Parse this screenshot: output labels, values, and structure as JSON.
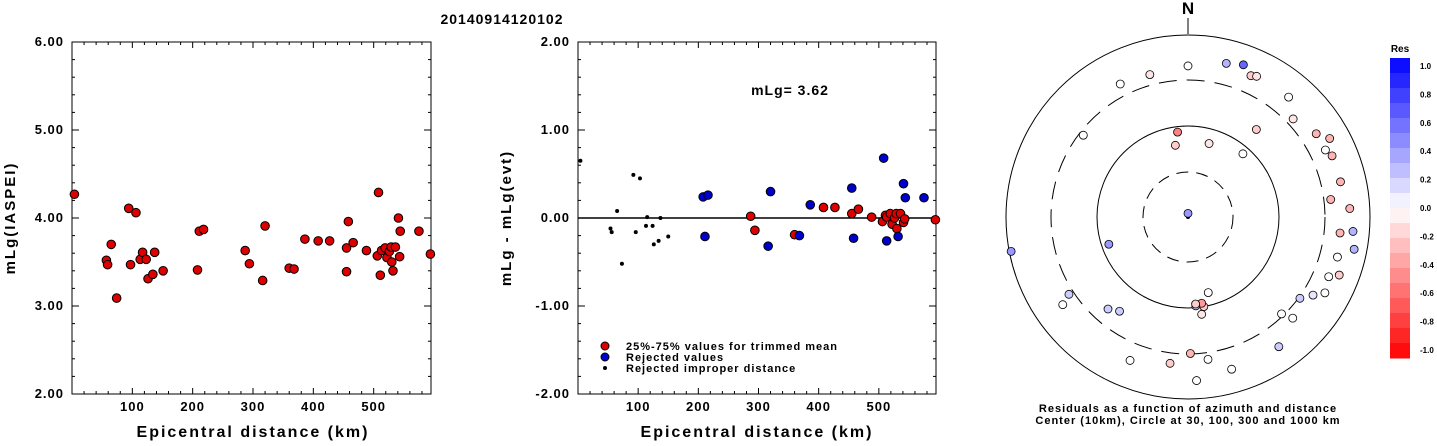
{
  "title": "20140914120102",
  "colors": {
    "accepted": "#dd0000",
    "rejected": "#0000cc",
    "improper": "#000000"
  },
  "chart_data": [
    {
      "type": "scatter",
      "name": "left",
      "xlabel": "Epicentral distance (km)",
      "ylabel": "mLg(IASPEI)",
      "xlim": [
        0,
        595
      ],
      "ylim": [
        2.0,
        6.0
      ],
      "xticks": [
        100,
        200,
        300,
        400,
        500
      ],
      "yticks": [
        "2.00",
        "3.00",
        "4.00",
        "5.00",
        "6.00"
      ],
      "points": [
        [
          4,
          4.27
        ],
        [
          57,
          3.52
        ],
        [
          59,
          3.47
        ],
        [
          65,
          3.7
        ],
        [
          74,
          3.09
        ],
        [
          94,
          4.11
        ],
        [
          97,
          3.47
        ],
        [
          106,
          4.06
        ],
        [
          113,
          3.53
        ],
        [
          117,
          3.61
        ],
        [
          123,
          3.53
        ],
        [
          126,
          3.31
        ],
        [
          134,
          3.36
        ],
        [
          137,
          3.61
        ],
        [
          151,
          3.4
        ],
        [
          208,
          3.41
        ],
        [
          211,
          3.85
        ],
        [
          218,
          3.87
        ],
        [
          287,
          3.63
        ],
        [
          294,
          3.48
        ],
        [
          316,
          3.29
        ],
        [
          320,
          3.91
        ],
        [
          360,
          3.43
        ],
        [
          368,
          3.42
        ],
        [
          386,
          3.76
        ],
        [
          408,
          3.74
        ],
        [
          427,
          3.74
        ],
        [
          455,
          3.39
        ],
        [
          455,
          3.66
        ],
        [
          458,
          3.96
        ],
        [
          466,
          3.72
        ],
        [
          488,
          3.63
        ],
        [
          506,
          3.57
        ],
        [
          508,
          4.29
        ],
        [
          511,
          3.35
        ],
        [
          513,
          3.63
        ],
        [
          519,
          3.66
        ],
        [
          522,
          3.55
        ],
        [
          526,
          3.62
        ],
        [
          529,
          3.67
        ],
        [
          530,
          3.5
        ],
        [
          532,
          3.4
        ],
        [
          536,
          3.67
        ],
        [
          541,
          4.0
        ],
        [
          543,
          3.56
        ],
        [
          544,
          3.85
        ],
        [
          575,
          3.85
        ],
        [
          594,
          3.59
        ]
      ]
    },
    {
      "type": "scatter",
      "name": "middle",
      "xlabel": "Epicentral distance (km)",
      "ylabel": "mLg - mLg(evt)",
      "annotation": "mLg= 3.62",
      "xlim": [
        0,
        595
      ],
      "ylim": [
        -2.0,
        2.0
      ],
      "xticks": [
        100,
        200,
        300,
        400,
        500
      ],
      "yticks": [
        "-2.00",
        "-1.00",
        "0.00",
        "1.00",
        "2.00"
      ],
      "series": [
        {
          "name": "25%-75% values for trimmed mean",
          "marker": "accepted",
          "points": [
            [
              287,
              0.02
            ],
            [
              294,
              -0.14
            ],
            [
              360,
              -0.19
            ],
            [
              408,
              0.12
            ],
            [
              427,
              0.12
            ],
            [
              455,
              0.05
            ],
            [
              466,
              0.1
            ],
            [
              488,
              0.01
            ],
            [
              506,
              -0.04
            ],
            [
              511,
              0.03
            ],
            [
              513,
              0.01
            ],
            [
              519,
              0.05
            ],
            [
              522,
              -0.07
            ],
            [
              526,
              0.0
            ],
            [
              529,
              0.05
            ],
            [
              530,
              -0.12
            ],
            [
              536,
              0.05
            ],
            [
              541,
              -0.05
            ],
            [
              543,
              -0.01
            ],
            [
              594,
              -0.02
            ]
          ]
        },
        {
          "name": "Rejected values",
          "marker": "rejected",
          "points": [
            [
              208,
              0.24
            ],
            [
              211,
              -0.21
            ],
            [
              216,
              0.26
            ],
            [
              316,
              -0.32
            ],
            [
              320,
              0.3
            ],
            [
              368,
              -0.2
            ],
            [
              386,
              0.15
            ],
            [
              455,
              0.34
            ],
            [
              458,
              -0.23
            ],
            [
              508,
              0.68
            ],
            [
              513,
              -0.26
            ],
            [
              532,
              -0.21
            ],
            [
              541,
              0.39
            ],
            [
              544,
              0.23
            ],
            [
              575,
              0.23
            ]
          ]
        },
        {
          "name": "Rejected improper distance",
          "marker": "improper",
          "points": [
            [
              4,
              0.65
            ],
            [
              54,
              -0.12
            ],
            [
              56,
              -0.16
            ],
            [
              65,
              0.08
            ],
            [
              73,
              -0.52
            ],
            [
              92,
              0.49
            ],
            [
              96,
              -0.16
            ],
            [
              103,
              0.45
            ],
            [
              113,
              -0.09
            ],
            [
              115,
              0.01
            ],
            [
              124,
              -0.09
            ],
            [
              126,
              -0.3
            ],
            [
              134,
              -0.26
            ],
            [
              137,
              0.0
            ],
            [
              150,
              -0.21
            ]
          ]
        }
      ]
    },
    {
      "type": "polar-scatter",
      "name": "residuals",
      "north_label": "N",
      "caption_line1": "Residuals as a function of azimuth and distance",
      "caption_line2": "Center (10km), Circle at 30, 100, 300 and 1000 km",
      "colorbar_title": "Res",
      "colorbar_ticks": [
        "1.0",
        "0.8",
        "0.6",
        "0.4",
        "0.2",
        "0.0",
        "-0.2",
        "-0.4",
        "-0.6",
        "-0.8",
        "-1.0"
      ],
      "rings_km": [
        10,
        30,
        100,
        300,
        1000
      ],
      "points_az_rnorm_res": [
        [
          0,
          0.02,
          0.4
        ],
        [
          0,
          0.83,
          0.0
        ],
        [
          14,
          0.87,
          0.3
        ],
        [
          20,
          0.89,
          0.6
        ],
        [
          24,
          0.85,
          -0.2
        ],
        [
          26,
          0.86,
          -0.1
        ],
        [
          -27,
          0.82,
          0.0
        ],
        [
          -15,
          0.81,
          -0.1
        ],
        [
          -52,
          0.73,
          0.0
        ],
        [
          -7,
          0.47,
          -0.5
        ],
        [
          -10,
          0.4,
          -0.2
        ],
        [
          16,
          0.42,
          -0.1
        ],
        [
          41,
          0.46,
          0.0
        ],
        [
          38,
          0.61,
          -0.2
        ],
        [
          40,
          0.86,
          0.0
        ],
        [
          47,
          0.79,
          -0.1
        ],
        [
          57,
          0.84,
          -0.3
        ],
        [
          61,
          0.89,
          -0.3
        ],
        [
          64,
          0.84,
          0.0
        ],
        [
          67,
          0.86,
          -0.3
        ],
        [
          77,
          0.86,
          -0.3
        ],
        [
          83,
          0.79,
          -0.3
        ],
        [
          87,
          0.89,
          -0.3
        ],
        [
          95,
          0.91,
          0.3
        ],
        [
          96,
          0.84,
          -0.3
        ],
        [
          101,
          0.93,
          0.3
        ],
        [
          105,
          0.85,
          0.0
        ],
        [
          111,
          0.89,
          -0.2
        ],
        [
          113,
          0.84,
          0.0
        ],
        [
          119,
          0.86,
          0.0
        ],
        [
          122,
          0.81,
          0.1
        ],
        [
          126,
          0.76,
          0.2
        ],
        [
          134,
          0.8,
          0.0
        ],
        [
          136,
          0.74,
          0.0
        ],
        [
          145,
          0.87,
          0.2
        ],
        [
          164,
          0.87,
          0.0
        ],
        [
          172,
          0.79,
          0.0
        ],
        [
          177,
          0.9,
          0.0
        ],
        [
          179,
          0.75,
          -0.3
        ],
        [
          165,
          0.43,
          0.0
        ],
        [
          170,
          0.5,
          -0.2
        ],
        [
          171,
          0.48,
          -0.4
        ],
        [
          172,
          0.54,
          -0.1
        ],
        [
          175,
          0.49,
          0.2
        ],
        [
          175,
          0.48,
          -0.2
        ],
        [
          187,
          0.81,
          -0.2
        ],
        [
          202,
          0.85,
          0.0
        ],
        [
          216,
          0.64,
          0.2
        ],
        [
          221,
          0.67,
          0.2
        ],
        [
          235,
          0.84,
          0.0
        ],
        [
          237,
          0.78,
          0.2
        ],
        [
          251,
          0.46,
          0.4
        ],
        [
          259,
          0.99,
          0.4
        ]
      ]
    }
  ]
}
